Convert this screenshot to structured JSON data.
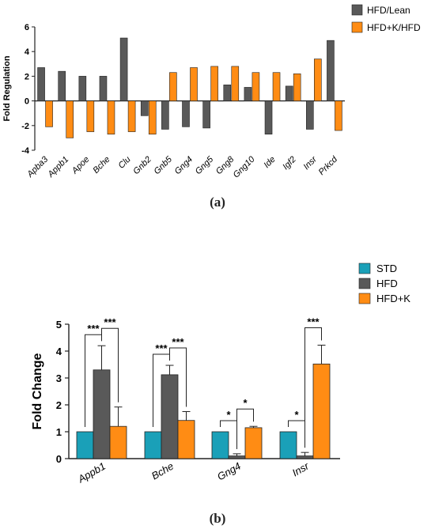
{
  "chart_data": [
    {
      "type": "bar",
      "ylabel": "Fold Regulation",
      "ylim": [
        -4,
        6
      ],
      "yticks": [
        -4,
        -2,
        0,
        2,
        4,
        6
      ],
      "legend_position": "top-right",
      "categories": [
        "Apba3",
        "Appb1",
        "Apoe",
        "Bche",
        "Clu",
        "Gnb2",
        "Gnb5",
        "Gng4",
        "Gng5",
        "Gng8",
        "Gng10",
        "Ide",
        "Igf2",
        "Insr",
        "Prkcd"
      ],
      "series": [
        {
          "name": "HFD/Lean",
          "color": "#595959",
          "values": [
            2.7,
            2.4,
            2.0,
            2.0,
            5.1,
            -1.2,
            -2.3,
            -2.1,
            -2.2,
            1.3,
            1.1,
            -2.7,
            1.2,
            -2.3,
            4.9
          ]
        },
        {
          "name": "HFD+K/HFD",
          "color": "#ff8c14",
          "values": [
            -2.1,
            -3.0,
            -2.5,
            -2.7,
            -2.5,
            -2.7,
            2.3,
            2.7,
            2.8,
            2.8,
            2.3,
            2.3,
            2.2,
            3.4,
            -2.4
          ]
        }
      ]
    },
    {
      "type": "bar",
      "ylabel": "Fold Change",
      "ylim": [
        0,
        5
      ],
      "yticks": [
        0,
        1,
        2,
        3,
        4,
        5
      ],
      "legend_position": "top-right",
      "categories": [
        "Appb1",
        "Bche",
        "Gng4",
        "Insr"
      ],
      "series": [
        {
          "name": "STD",
          "color": "#1aa0b8",
          "values": [
            1.0,
            1.0,
            1.0,
            1.0
          ],
          "errors": [
            0,
            0,
            0,
            0
          ]
        },
        {
          "name": "HFD",
          "color": "#595959",
          "values": [
            3.3,
            3.12,
            0.1,
            0.1
          ],
          "errors": [
            0.9,
            0.35,
            0.08,
            0.13
          ]
        },
        {
          "name": "HFD+K",
          "color": "#ff8c14",
          "values": [
            1.2,
            1.42,
            1.15,
            3.52
          ],
          "errors": [
            0.72,
            0.33,
            0.05,
            0.7
          ]
        }
      ],
      "significance": [
        {
          "category": 0,
          "from": 0,
          "to": 1,
          "label": "***"
        },
        {
          "category": 0,
          "from": 1,
          "to": 2,
          "label": "***"
        },
        {
          "category": 1,
          "from": 0,
          "to": 1,
          "label": "***"
        },
        {
          "category": 1,
          "from": 1,
          "to": 2,
          "label": "***"
        },
        {
          "category": 2,
          "from": 0,
          "to": 1,
          "label": "*"
        },
        {
          "category": 2,
          "from": 1,
          "to": 2,
          "label": "*"
        },
        {
          "category": 3,
          "from": 0,
          "to": 1,
          "label": "*"
        },
        {
          "category": 3,
          "from": 1,
          "to": 2,
          "label": "***"
        }
      ]
    }
  ],
  "captions": {
    "a": "(a)",
    "b": "(b)"
  }
}
